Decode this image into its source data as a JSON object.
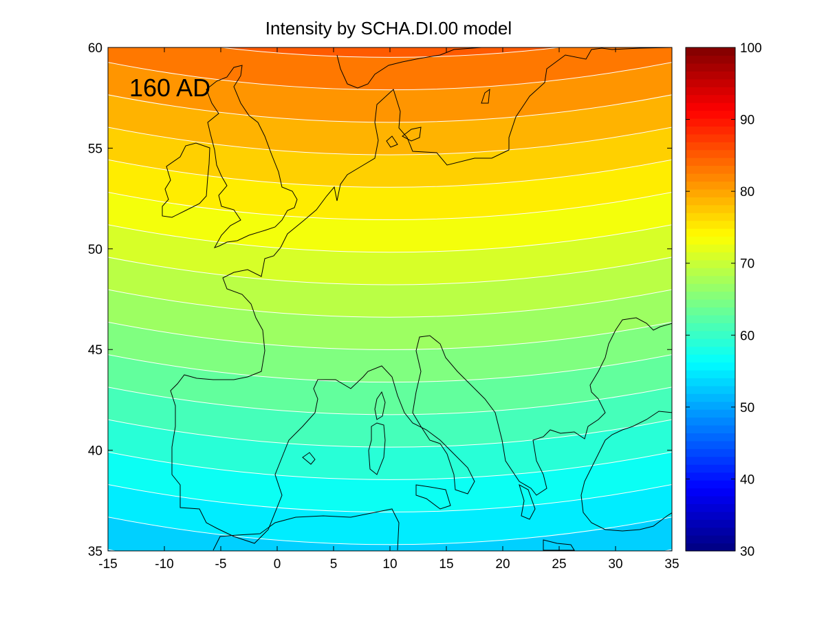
{
  "figure": {
    "title": "Intensity by SCHA.DI.00 model",
    "annotation": "160 AD"
  },
  "chart_data": {
    "type": "heatmap",
    "title": "Intensity by SCHA.DI.00 model",
    "annotation": "160 AD",
    "x_ticks": [
      "-15",
      "-10",
      "-5",
      "0",
      "5",
      "10",
      "15",
      "20",
      "25",
      "30",
      "35"
    ],
    "y_ticks": [
      "35",
      "40",
      "45",
      "50",
      "55",
      "60"
    ],
    "xlim": [
      -15,
      35
    ],
    "ylim": [
      35,
      60
    ],
    "colorbar": {
      "ticks": [
        "30",
        "40",
        "50",
        "60",
        "70",
        "80",
        "90",
        "100"
      ],
      "range": [
        30,
        100
      ],
      "colormap": "jet",
      "levels": 64
    },
    "field_description_values": {
      "value_at_lat_35": 52,
      "value_at_lat_60": 83,
      "contour_interval": 2
    },
    "contour_color": "#ffffff",
    "coastline_color": "#000000"
  }
}
